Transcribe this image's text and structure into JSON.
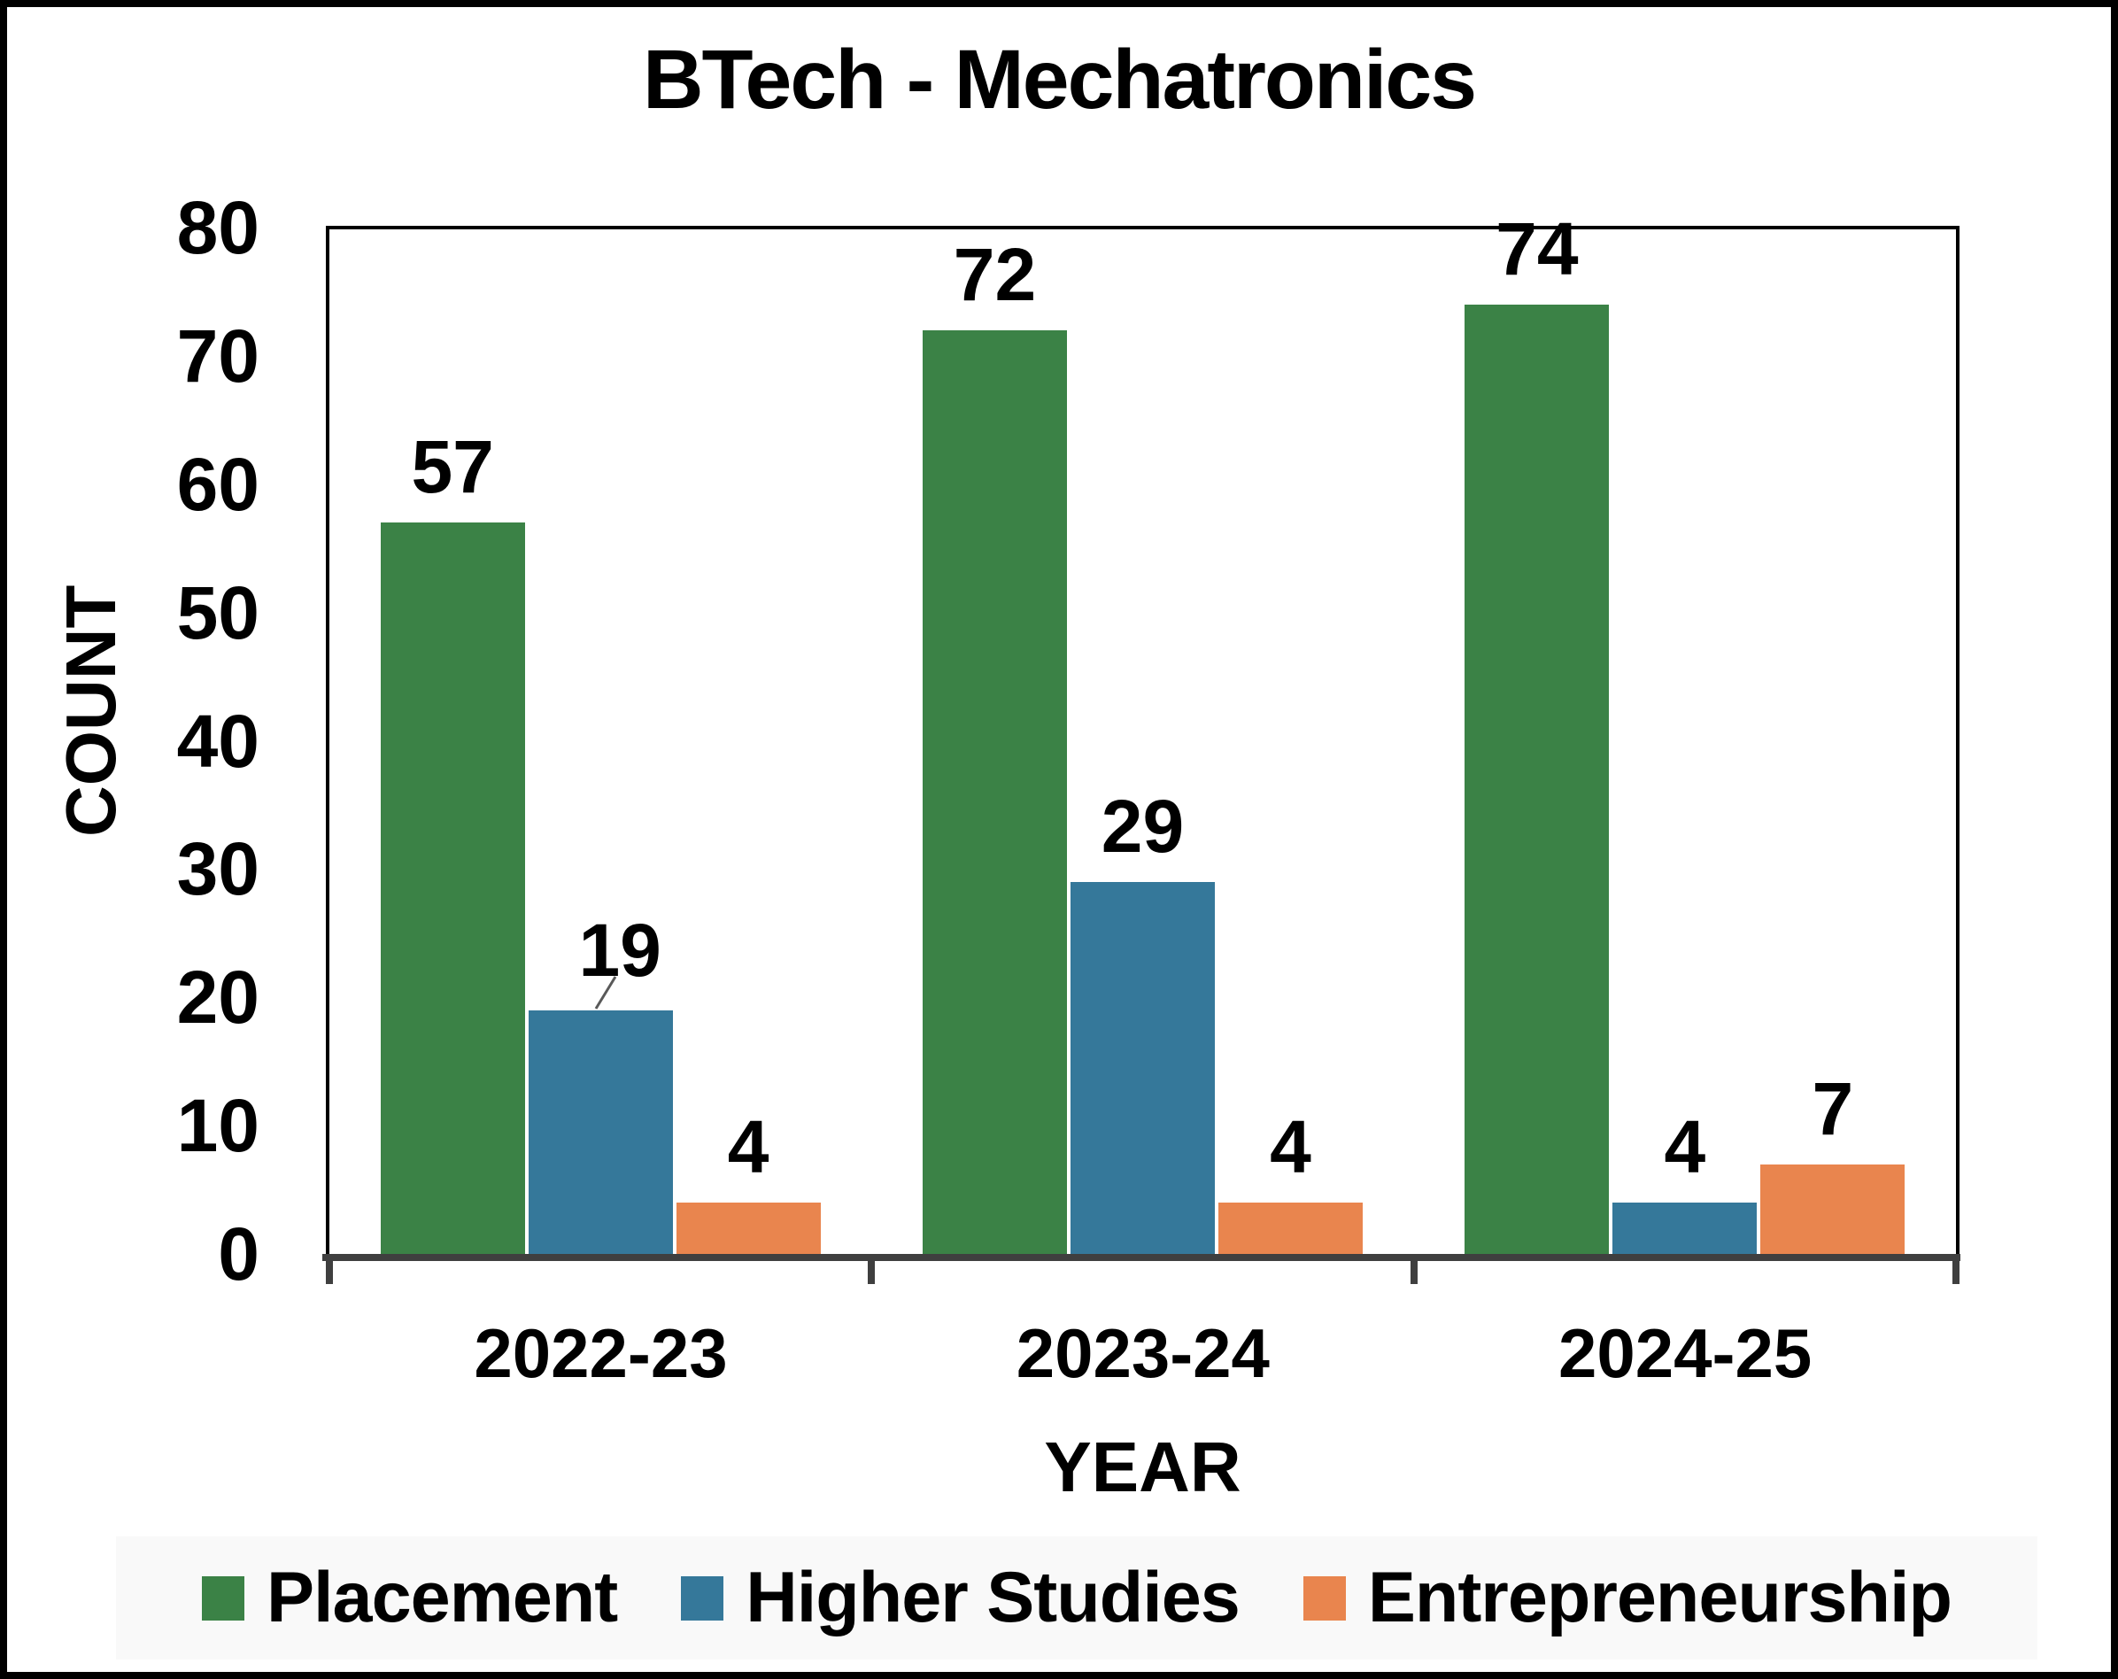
{
  "title": "BTech - Mechatronics",
  "chart_data": {
    "type": "bar",
    "title": "BTech - Mechatronics",
    "xlabel": "YEAR",
    "ylabel": "COUNT",
    "ylim": [
      0,
      80
    ],
    "ytick_step": 10,
    "ytick_labels": [
      "0",
      "10",
      "20",
      "30",
      "40",
      "50",
      "60",
      "70",
      "80"
    ],
    "categories": [
      "2022-23",
      "2023-24",
      "2024-25"
    ],
    "series": [
      {
        "name": "Placement",
        "color": "#3B8246",
        "values": [
          57,
          72,
          74
        ]
      },
      {
        "name": "Higher Studies",
        "color": "#35789A",
        "values": [
          19,
          29,
          4
        ]
      },
      {
        "name": "Entrepreneurship",
        "color": "#E9854E",
        "values": [
          4,
          4,
          7
        ]
      }
    ],
    "data_labels": true,
    "grid": false,
    "legend_position": "bottom",
    "label_adjustments": [
      {
        "series_index": 1,
        "category_index": 0,
        "dx": 22,
        "dy": -5,
        "leader_line": true
      }
    ]
  },
  "colors": {
    "axis_line": "#3F3F3F",
    "plot_border": "#000000",
    "legend_bg": "#F9F9F9",
    "label_color": "#000000",
    "leader_line": "#595959",
    "page_border": "#000000"
  }
}
